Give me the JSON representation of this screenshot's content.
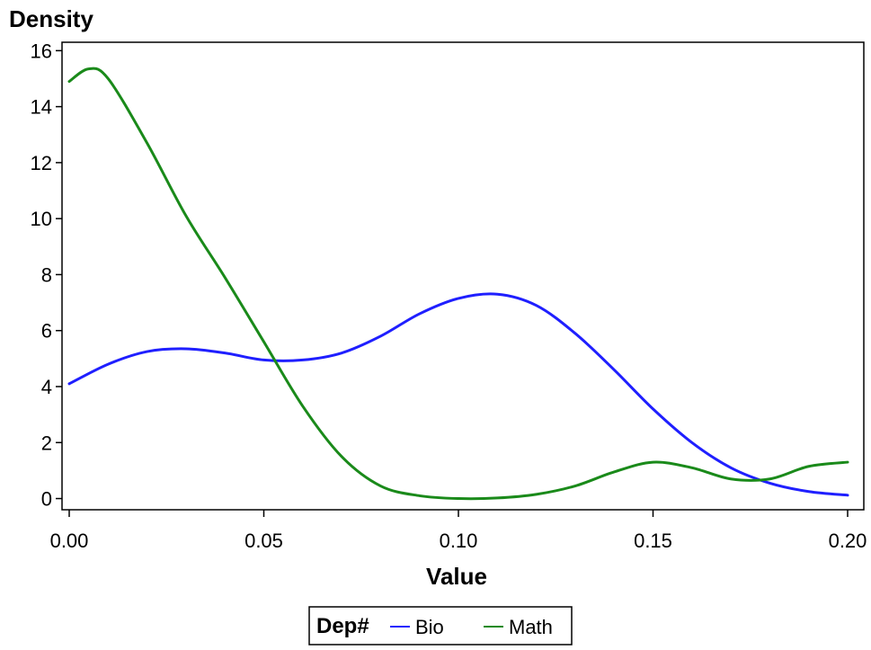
{
  "chart_data": {
    "type": "line",
    "ylabel": "Density",
    "xlabel": "Value",
    "xlim": [
      0.0,
      0.2
    ],
    "ylim": [
      -0.4,
      16.3
    ],
    "x_ticks": [
      "0.00",
      "0.05",
      "0.10",
      "0.15",
      "0.20"
    ],
    "y_ticks": [
      "0",
      "2",
      "4",
      "6",
      "8",
      "10",
      "12",
      "14",
      "16"
    ],
    "grid": false,
    "legend": {
      "title": "Dep#",
      "placement": "bottom-center"
    },
    "series": [
      {
        "name": "Bio",
        "color": "#1f1fff",
        "x": [
          0.0,
          0.01,
          0.02,
          0.03,
          0.04,
          0.05,
          0.06,
          0.07,
          0.08,
          0.09,
          0.1,
          0.11,
          0.12,
          0.13,
          0.14,
          0.15,
          0.16,
          0.17,
          0.18,
          0.19,
          0.2
        ],
        "y": [
          4.1,
          4.8,
          5.25,
          5.35,
          5.2,
          4.95,
          4.95,
          5.2,
          5.8,
          6.6,
          7.15,
          7.3,
          6.9,
          5.9,
          4.6,
          3.2,
          2.0,
          1.1,
          0.55,
          0.25,
          0.12
        ]
      },
      {
        "name": "Math",
        "color": "#1a8a1a",
        "x": [
          0.0,
          0.005,
          0.01,
          0.02,
          0.03,
          0.04,
          0.05,
          0.06,
          0.07,
          0.08,
          0.09,
          0.1,
          0.11,
          0.12,
          0.13,
          0.14,
          0.15,
          0.16,
          0.17,
          0.18,
          0.19,
          0.2
        ],
        "y": [
          14.9,
          15.35,
          15.0,
          12.7,
          10.1,
          7.9,
          5.6,
          3.3,
          1.5,
          0.45,
          0.1,
          0.0,
          0.02,
          0.15,
          0.45,
          0.95,
          1.3,
          1.1,
          0.7,
          0.7,
          1.15,
          1.3
        ]
      }
    ]
  }
}
